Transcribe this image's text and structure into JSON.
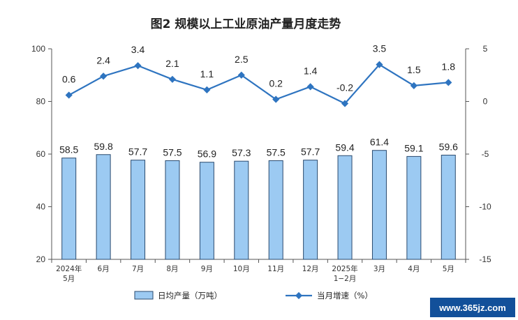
{
  "chart_data": {
    "type": "bar",
    "title": "图2  规模以上工业原油产量月度走势",
    "categories": [
      [
        "2024年",
        "5月"
      ],
      [
        "6月"
      ],
      [
        "7月"
      ],
      [
        "8月"
      ],
      [
        "9月"
      ],
      [
        "10月"
      ],
      [
        "11月"
      ],
      [
        "12月"
      ],
      [
        "2025年",
        "1−2月"
      ],
      [
        "3月"
      ],
      [
        "4月"
      ],
      [
        "5月"
      ]
    ],
    "series": [
      {
        "name": "日均产量（万吨）",
        "type": "bar",
        "axis": "left",
        "values": [
          58.5,
          59.8,
          57.7,
          57.5,
          56.9,
          57.3,
          57.5,
          57.7,
          59.4,
          61.4,
          59.1,
          59.6
        ]
      },
      {
        "name": "当月增速（%）",
        "type": "line",
        "axis": "right",
        "values": [
          0.6,
          2.4,
          3.4,
          2.1,
          1.1,
          2.5,
          0.2,
          1.4,
          -0.2,
          3.5,
          1.5,
          1.8
        ]
      }
    ],
    "y_left": {
      "min": 20,
      "max": 100,
      "ticks": [
        "20",
        "40",
        "60",
        "80",
        "100"
      ]
    },
    "y_right": {
      "min": -15,
      "max": 5,
      "ticks": [
        "-15",
        "-10",
        "-5",
        "0",
        "5"
      ]
    },
    "grid": false,
    "legend_position": "bottom",
    "colors": {
      "bar_fill": "#9ccaf2",
      "bar_stroke": "#2a4a6e",
      "line": "#2e74c0"
    }
  },
  "watermark": "www.365jz.com"
}
